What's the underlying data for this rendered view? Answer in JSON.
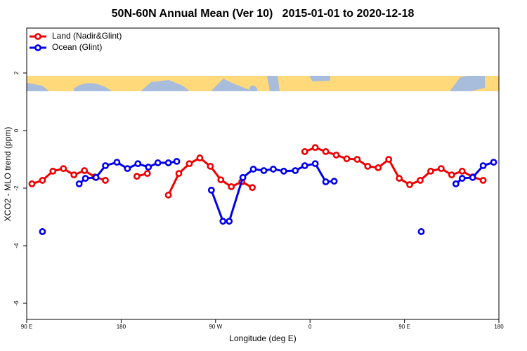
{
  "chart_data": {
    "type": "line",
    "title": "50N-60N Annual Mean (Ver 10)   2015-01-01 to 2020-12-18",
    "x_label": "Longitude (deg E)",
    "y_label": "XCO2 - MLO trend (ppm)",
    "xlim": [
      90,
      540
    ],
    "ylim": [
      -6.56,
      3.56
    ],
    "xticks": [
      {
        "value": 90,
        "label": "90 E"
      },
      {
        "value": 180,
        "label": "180"
      },
      {
        "value": 270,
        "label": "90 W"
      },
      {
        "value": 360,
        "label": "0"
      },
      {
        "value": 450,
        "label": "90 E"
      },
      {
        "value": 540,
        "label": "180"
      }
    ],
    "yticks": [
      2,
      0,
      -2,
      -4,
      -6
    ],
    "legend": "top-left",
    "series": [
      {
        "name": "Land (Nadir&Glint)",
        "color": "#ee0000",
        "x": [
          95,
          105,
          115,
          125,
          135,
          145,
          155,
          165,
          175,
          185,
          195,
          205,
          215,
          225,
          235,
          245,
          255,
          265,
          275,
          285,
          295,
          305,
          315,
          325,
          335,
          345,
          355,
          365,
          375,
          385,
          395,
          405,
          415,
          425,
          435,
          445,
          455,
          465,
          475,
          485,
          495,
          505,
          515,
          525
        ],
        "values": [
          -1.85,
          -1.73,
          -1.41,
          -1.32,
          -1.54,
          -1.39,
          -1.61,
          -1.73,
          null,
          null,
          -1.59,
          -1.49,
          null,
          -2.24,
          -1.49,
          -1.15,
          -0.95,
          -1.24,
          -1.71,
          -1.95,
          -1.78,
          -1.98,
          null,
          null,
          null,
          null,
          -0.73,
          -0.59,
          -0.73,
          -0.85,
          -0.98,
          -1.0,
          -1.24,
          -1.29,
          -1.0,
          -1.66,
          -1.88,
          -1.73,
          -1.41,
          -1.32,
          -1.54,
          -1.41,
          -1.61,
          -1.73
        ]
      },
      {
        "name": "Ocean (Glint)",
        "color": "#0000ee",
        "x": [
          105,
          120,
          140,
          146,
          156,
          165,
          176,
          186,
          196,
          206,
          215,
          225,
          233,
          250,
          266,
          277,
          283,
          296,
          306,
          316,
          325,
          335,
          346,
          355,
          365,
          375,
          383,
          420,
          466,
          485,
          499,
          505,
          515,
          525,
          535
        ],
        "values": [
          -3.51,
          null,
          -1.85,
          -1.66,
          -1.63,
          -1.22,
          -1.1,
          -1.32,
          -1.15,
          -1.27,
          -1.12,
          -1.12,
          -1.07,
          null,
          -2.07,
          -3.15,
          -3.15,
          -1.63,
          -1.34,
          -1.39,
          -1.34,
          -1.41,
          -1.39,
          -1.22,
          -1.15,
          -1.78,
          -1.76,
          null,
          -3.51,
          null,
          -1.85,
          -1.66,
          -1.63,
          -1.22,
          -1.1
        ]
      }
    ]
  }
}
